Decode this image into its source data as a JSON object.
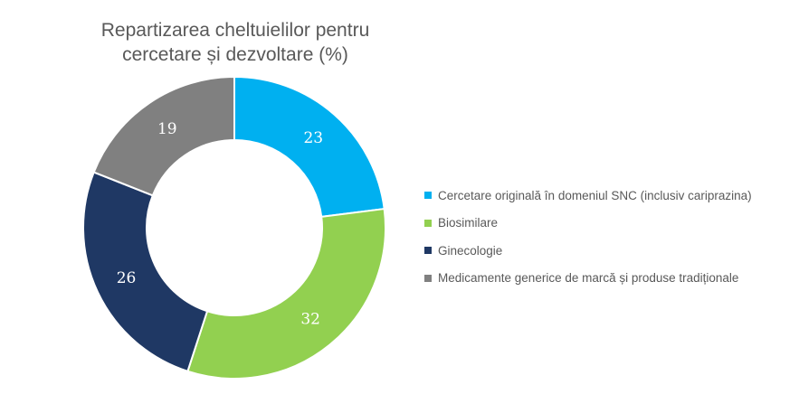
{
  "chart_data": {
    "type": "pie",
    "title": "Repartizarea cheltuielilor pentru\ncercetare și dezvoltare (%)",
    "categories": [
      "Cercetare originală în domeniul SNC (inclusiv  cariprazina)",
      "Biosimilare",
      "Ginecologie",
      "Medicamente generice de marcă și produse tradiționale"
    ],
    "values": [
      23,
      32,
      26,
      19
    ],
    "colors": [
      "#00B0F0",
      "#92D050",
      "#1F3864",
      "#808080"
    ],
    "data_labels": [
      "23",
      "32",
      "26",
      "19"
    ],
    "label_color": "#ffffff",
    "legend_position": "right",
    "donut": true
  }
}
